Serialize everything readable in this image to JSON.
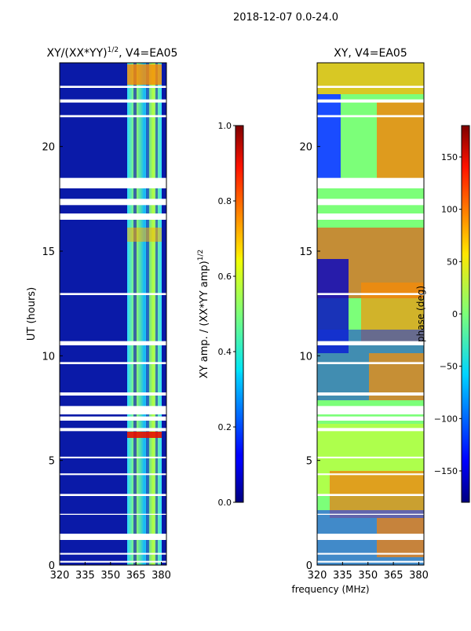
{
  "suptitle": "2018-12-07 0.0-24.0",
  "chart_data": [
    {
      "type": "heatmap",
      "title": "XY/(XX*YY)^1/2, V4=EA05",
      "title_main": "XY/(XX*YY)",
      "title_exp": "1/2",
      "title_rest": ", V4=EA05",
      "xlabel": "",
      "ylabel": "UT (hours)",
      "xlim": [
        320,
        383
      ],
      "ylim": [
        0,
        24
      ],
      "xticks": [
        320,
        335,
        350,
        365,
        380
      ],
      "yticks": [
        0,
        5,
        10,
        15,
        20
      ],
      "colorbar": {
        "label": "XY amp. / (XX*YY amp)^1/2",
        "label_main": "XY amp. / (XX*YY amp)",
        "label_exp": "1/2",
        "range": [
          0.0,
          1.0
        ],
        "ticks": [
          "0.0",
          "0.2",
          "0.4",
          "0.6",
          "0.8",
          "1.0"
        ],
        "tick_values": [
          0.0,
          0.2,
          0.4,
          0.6,
          0.8,
          1.0
        ]
      }
    },
    {
      "type": "heatmap",
      "title": "XY, V4=EA05",
      "xlabel": "frequency (MHz)",
      "ylabel": "",
      "xlim": [
        320,
        383
      ],
      "ylim": [
        0,
        24
      ],
      "xticks": [
        320,
        335,
        350,
        365,
        380
      ],
      "yticks": [
        0,
        5,
        10,
        15,
        20
      ],
      "colorbar": {
        "label": "phase (deg)",
        "range": [
          -180,
          180
        ],
        "ticks": [
          "−150",
          "−100",
          "−50",
          "0",
          "50",
          "100",
          "150"
        ],
        "tick_values": [
          -150,
          -100,
          -50,
          0,
          50,
          100,
          150
        ]
      }
    }
  ],
  "data_gaps_hours": [
    [
      0.12,
      0.2
    ],
    [
      0.5,
      0.58
    ],
    [
      1.2,
      1.5
    ],
    [
      2.4,
      2.45
    ],
    [
      3.3,
      3.4
    ],
    [
      4.3,
      4.38
    ],
    [
      5.1,
      5.18
    ],
    [
      6.4,
      6.55
    ],
    [
      6.9,
      7.1
    ],
    [
      7.2,
      7.6
    ],
    [
      8.1,
      8.25
    ],
    [
      9.6,
      9.7
    ],
    [
      10.5,
      10.7
    ],
    [
      12.9,
      13.0
    ],
    [
      16.5,
      16.8
    ],
    [
      17.2,
      17.5
    ],
    [
      18.0,
      18.5
    ],
    [
      21.4,
      21.5
    ],
    [
      22.1,
      22.25
    ],
    [
      22.8,
      22.9
    ]
  ]
}
